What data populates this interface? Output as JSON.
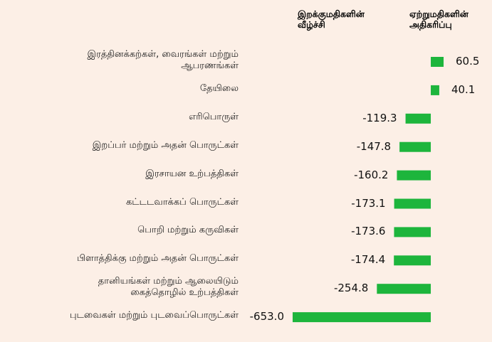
{
  "chart_data": {
    "type": "bar",
    "orientation": "horizontal",
    "headers": [
      "இறக்குமதிகளின்\nவீழ்ச்சி",
      "ஏற்றுமதிகளின்\nஅதிகரிப்பு"
    ],
    "categories": [
      "இரத்தினக்கற்கள், வைரங்கள் மற்றும்\nஆபரணங்கள்",
      "தேயிலை",
      "எரிபொருள்",
      "இறப்பர் மற்றும் அதன் பொருட்கள்",
      "இரசாயன உற்பத்திகள்",
      "கட்டடவாக்கப் பொருட்கள்",
      "பொறி மற்றும் கருவிகள்",
      "பிளாத்திக்கு மற்றும் அதன் பொருட்கள்",
      "தானியங்கள் மற்றும் ஆலையிடும்\nகைத்தொழில் உற்பத்திகள்",
      "புடவைகள் மற்றும் புடவைப்பொருட்கள்"
    ],
    "values": [
      60.5,
      40.1,
      -119.3,
      -147.8,
      -160.2,
      -173.1,
      -173.6,
      -174.4,
      -254.8,
      -653.0
    ],
    "value_labels": [
      "60.5",
      "40.1",
      "-119.3",
      "-147.8",
      "-160.2",
      "-173.1",
      "-173.6",
      "-174.4",
      "-254.8",
      "-653.0"
    ],
    "color": "#1db53c"
  }
}
